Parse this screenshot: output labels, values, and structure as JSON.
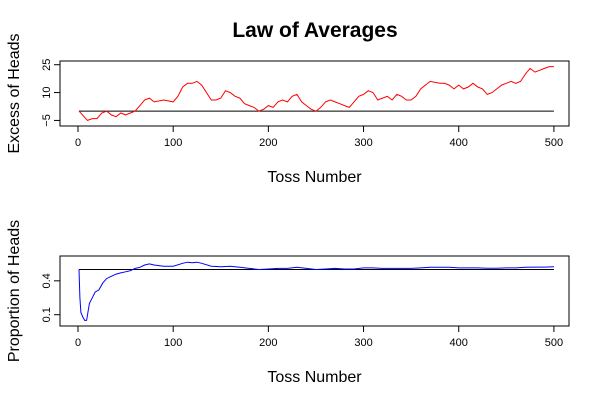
{
  "title": "Law of Averages",
  "chart_data": [
    {
      "type": "line",
      "xlabel": "Toss Number",
      "ylabel": "Excess of Heads",
      "xlim": [
        0,
        500
      ],
      "ylim": [
        -8,
        27
      ],
      "xticks": [
        0,
        100,
        200,
        300,
        400,
        500
      ],
      "yticks": [
        -5,
        10,
        25
      ],
      "ytick_labels": [
        "−5",
        "10",
        "25"
      ],
      "reference_line": 0,
      "series": [
        {
          "color": "#ff0000",
          "points": [
            [
              1,
              0
            ],
            [
              10,
              -5
            ],
            [
              15,
              -4
            ],
            [
              20,
              -4
            ],
            [
              25,
              -1
            ],
            [
              30,
              0
            ],
            [
              35,
              -2
            ],
            [
              40,
              -3
            ],
            [
              45,
              -1
            ],
            [
              50,
              -2
            ],
            [
              55,
              -1
            ],
            [
              60,
              0
            ],
            [
              65,
              3
            ],
            [
              70,
              6
            ],
            [
              75,
              7
            ],
            [
              80,
              5
            ],
            [
              90,
              6
            ],
            [
              100,
              5
            ],
            [
              105,
              8
            ],
            [
              110,
              13
            ],
            [
              115,
              15
            ],
            [
              120,
              15
            ],
            [
              125,
              16
            ],
            [
              130,
              14
            ],
            [
              135,
              10
            ],
            [
              140,
              6
            ],
            [
              145,
              6
            ],
            [
              150,
              7
            ],
            [
              155,
              11
            ],
            [
              160,
              10
            ],
            [
              165,
              8
            ],
            [
              170,
              7
            ],
            [
              175,
              4
            ],
            [
              180,
              3
            ],
            [
              185,
              2
            ],
            [
              190,
              0
            ],
            [
              195,
              1
            ],
            [
              200,
              3
            ],
            [
              205,
              2
            ],
            [
              210,
              5
            ],
            [
              215,
              6
            ],
            [
              220,
              5
            ],
            [
              225,
              8
            ],
            [
              230,
              9
            ],
            [
              235,
              5
            ],
            [
              240,
              3
            ],
            [
              245,
              1
            ],
            [
              250,
              0
            ],
            [
              255,
              2
            ],
            [
              260,
              5
            ],
            [
              265,
              6
            ],
            [
              270,
              5
            ],
            [
              275,
              4
            ],
            [
              280,
              3
            ],
            [
              285,
              2
            ],
            [
              290,
              5
            ],
            [
              295,
              8
            ],
            [
              300,
              9
            ],
            [
              305,
              11
            ],
            [
              310,
              10
            ],
            [
              315,
              6
            ],
            [
              320,
              7
            ],
            [
              325,
              8
            ],
            [
              330,
              6
            ],
            [
              335,
              9
            ],
            [
              340,
              8
            ],
            [
              345,
              6
            ],
            [
              350,
              6
            ],
            [
              355,
              8
            ],
            [
              360,
              12
            ],
            [
              365,
              14
            ],
            [
              370,
              16
            ],
            [
              380,
              15
            ],
            [
              385,
              15
            ],
            [
              390,
              14
            ],
            [
              395,
              12
            ],
            [
              400,
              14
            ],
            [
              405,
              12
            ],
            [
              410,
              13
            ],
            [
              415,
              15
            ],
            [
              420,
              13
            ],
            [
              425,
              12
            ],
            [
              430,
              9
            ],
            [
              435,
              10
            ],
            [
              440,
              12
            ],
            [
              445,
              14
            ],
            [
              450,
              15
            ],
            [
              455,
              16
            ],
            [
              460,
              15
            ],
            [
              465,
              16
            ],
            [
              470,
              20
            ],
            [
              475,
              23
            ],
            [
              480,
              21
            ],
            [
              485,
              22
            ],
            [
              490,
              23
            ],
            [
              495,
              24
            ],
            [
              500,
              24
            ]
          ]
        }
      ]
    },
    {
      "type": "line",
      "xlabel": "Toss Number",
      "ylabel": "Proportion of Heads",
      "xlim": [
        0,
        500
      ],
      "ylim": [
        0,
        0.62
      ],
      "xticks": [
        0,
        100,
        200,
        300,
        400,
        500
      ],
      "yticks": [
        0.1,
        0.4
      ],
      "ytick_labels": [
        "0.1",
        "0.4"
      ],
      "reference_line": 0.5,
      "series": [
        {
          "color": "#0000ff",
          "points": [
            [
              1,
              0.5
            ],
            [
              2,
              0.25
            ],
            [
              3,
              0.12
            ],
            [
              5,
              0.08
            ],
            [
              7,
              0.05
            ],
            [
              9,
              0.05
            ],
            [
              12,
              0.2
            ],
            [
              15,
              0.25
            ],
            [
              18,
              0.3
            ],
            [
              22,
              0.32
            ],
            [
              26,
              0.38
            ],
            [
              30,
              0.42
            ],
            [
              35,
              0.44
            ],
            [
              40,
              0.46
            ],
            [
              45,
              0.47
            ],
            [
              50,
              0.48
            ],
            [
              55,
              0.49
            ],
            [
              60,
              0.51
            ],
            [
              65,
              0.52
            ],
            [
              70,
              0.54
            ],
            [
              75,
              0.55
            ],
            [
              80,
              0.54
            ],
            [
              90,
              0.53
            ],
            [
              100,
              0.53
            ],
            [
              110,
              0.555
            ],
            [
              115,
              0.565
            ],
            [
              120,
              0.56
            ],
            [
              125,
              0.565
            ],
            [
              130,
              0.555
            ],
            [
              140,
              0.53
            ],
            [
              150,
              0.525
            ],
            [
              160,
              0.53
            ],
            [
              170,
              0.52
            ],
            [
              180,
              0.51
            ],
            [
              190,
              0.5
            ],
            [
              200,
              0.505
            ],
            [
              210,
              0.51
            ],
            [
              220,
              0.51
            ],
            [
              230,
              0.52
            ],
            [
              240,
              0.51
            ],
            [
              250,
              0.5
            ],
            [
              260,
              0.505
            ],
            [
              270,
              0.51
            ],
            [
              280,
              0.505
            ],
            [
              290,
              0.505
            ],
            [
              300,
              0.515
            ],
            [
              310,
              0.515
            ],
            [
              320,
              0.51
            ],
            [
              330,
              0.51
            ],
            [
              340,
              0.51
            ],
            [
              350,
              0.51
            ],
            [
              360,
              0.515
            ],
            [
              370,
              0.52
            ],
            [
              380,
              0.52
            ],
            [
              390,
              0.52
            ],
            [
              400,
              0.515
            ],
            [
              410,
              0.515
            ],
            [
              420,
              0.515
            ],
            [
              430,
              0.512
            ],
            [
              440,
              0.512
            ],
            [
              450,
              0.515
            ],
            [
              460,
              0.515
            ],
            [
              470,
              0.52
            ],
            [
              480,
              0.522
            ],
            [
              490,
              0.522
            ],
            [
              500,
              0.524
            ]
          ]
        }
      ]
    }
  ]
}
